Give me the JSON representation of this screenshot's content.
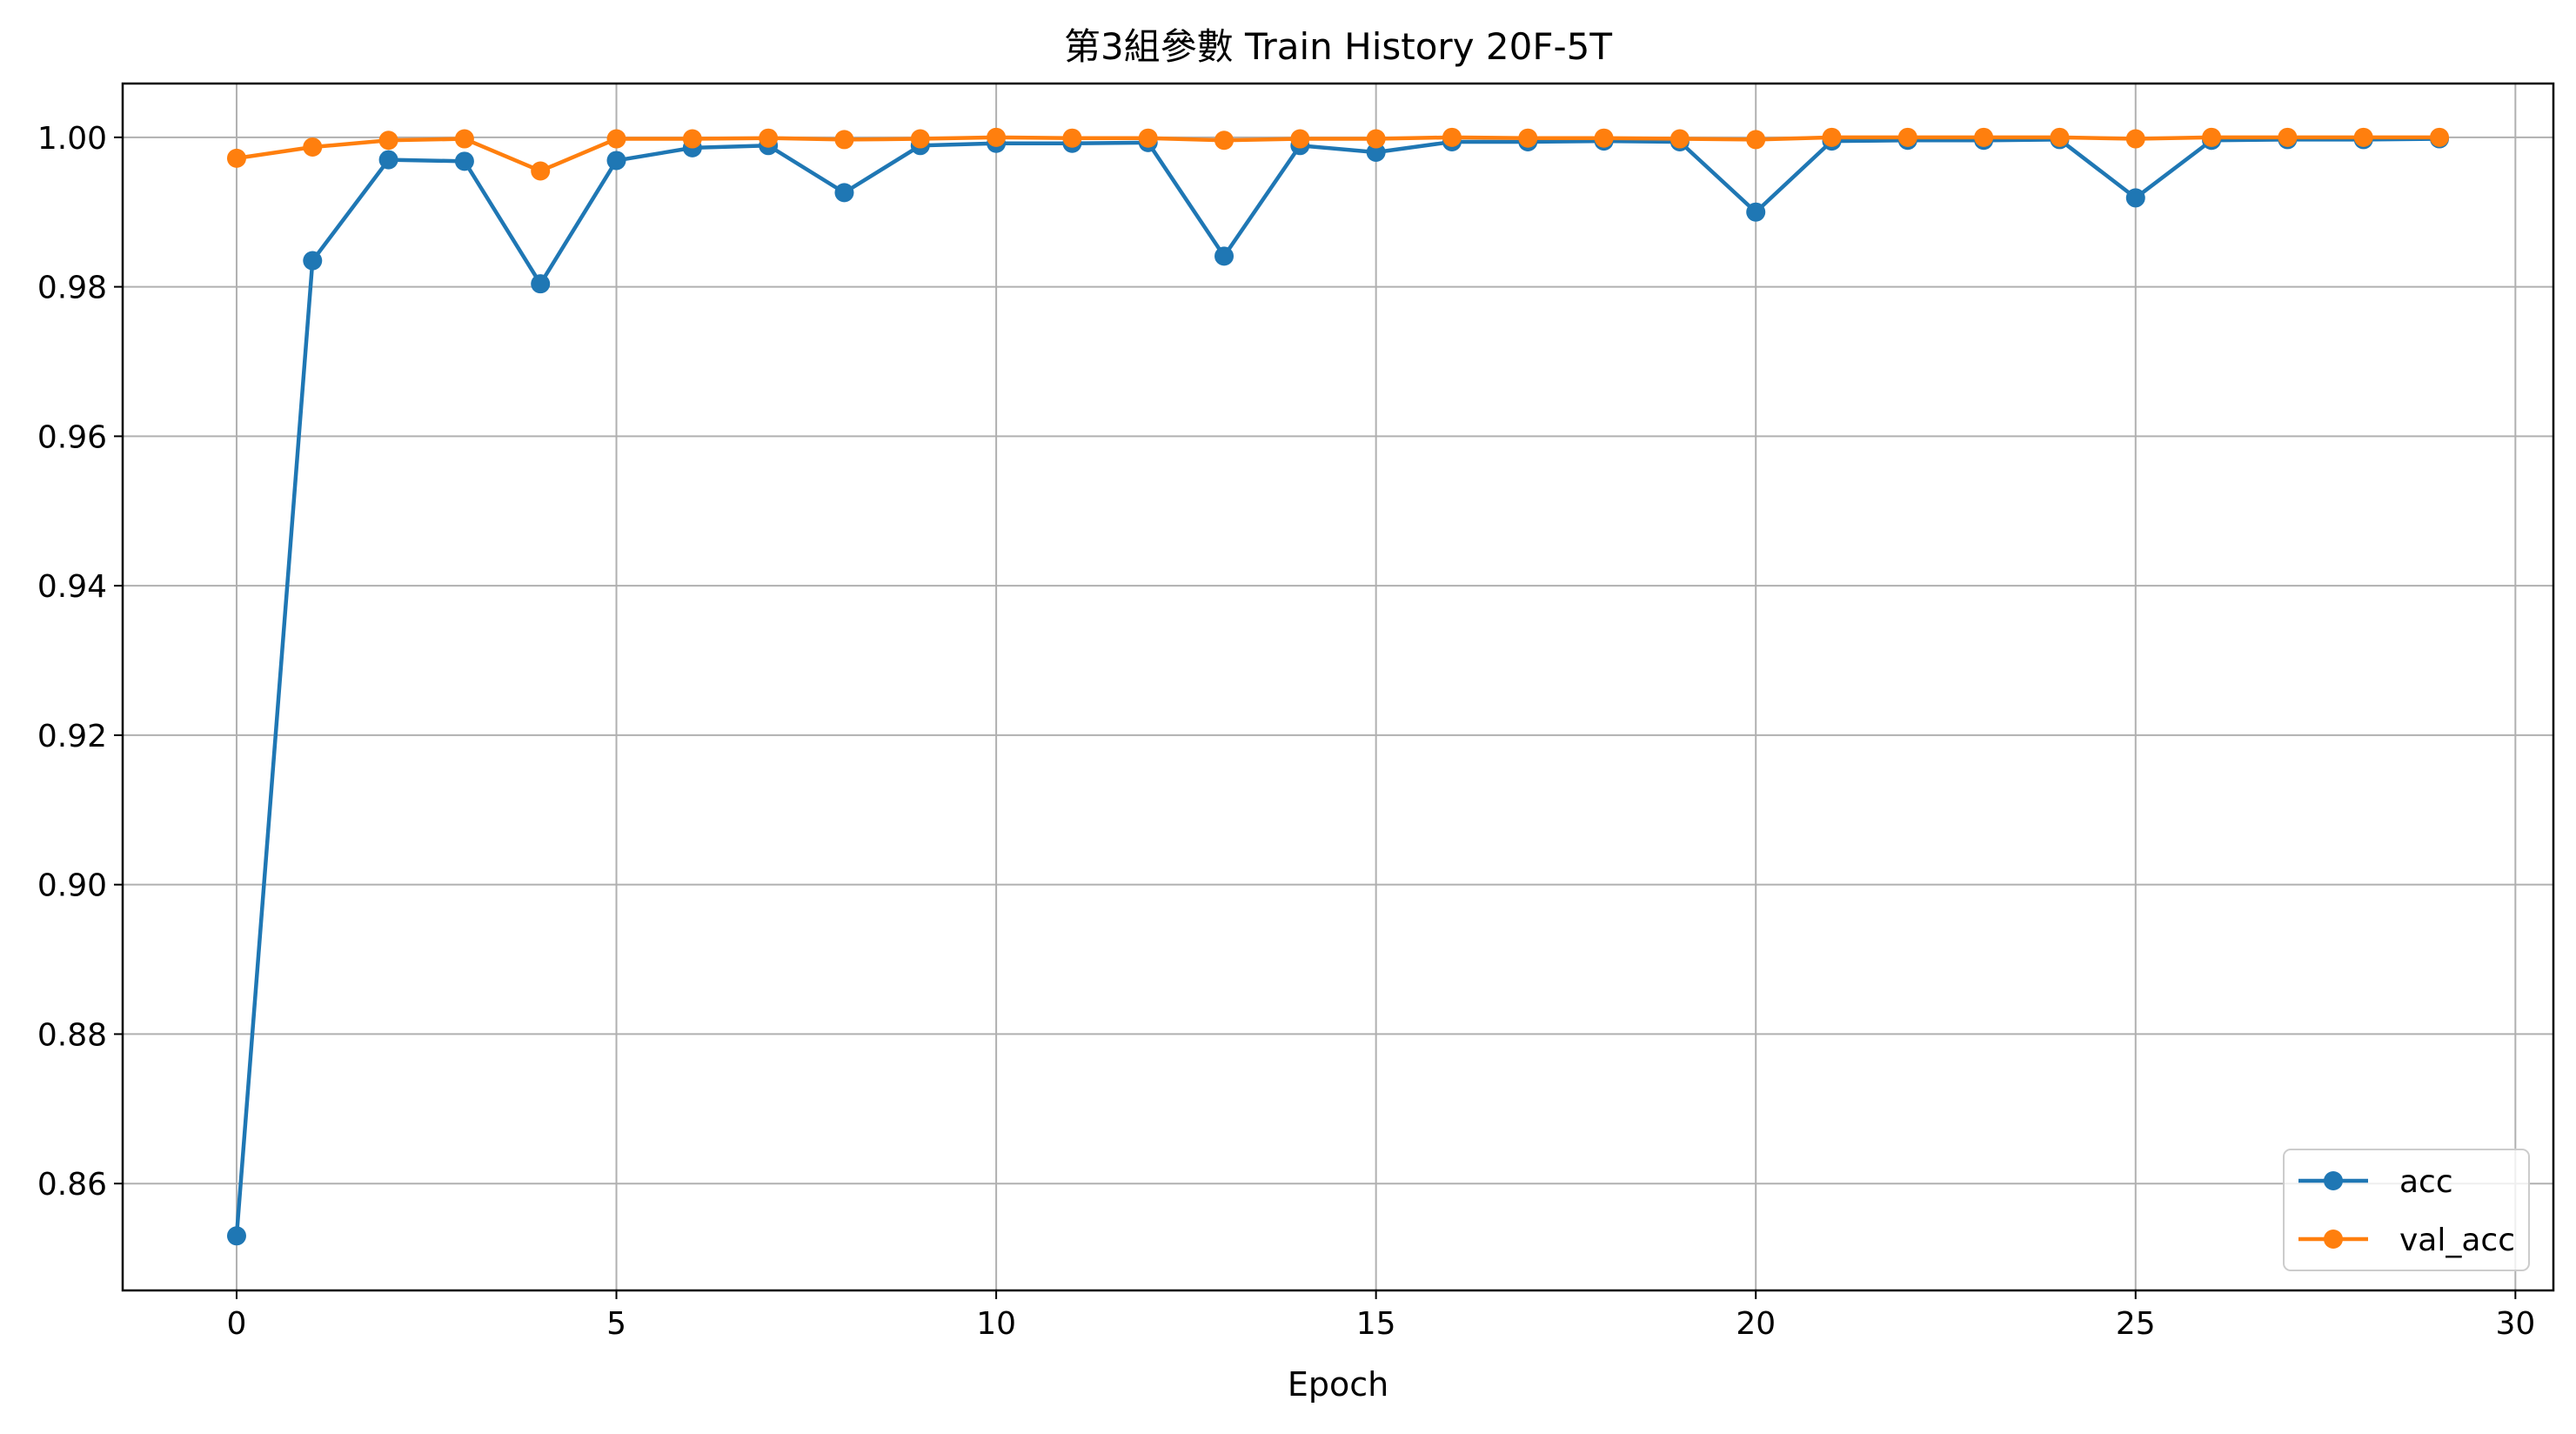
{
  "chart_data": {
    "type": "line",
    "title": "第3組參數 Train History 20F-5T",
    "xlabel": "Epoch",
    "ylabel": "",
    "xlim": [
      -1.5,
      30.5
    ],
    "ylim": [
      0.8457,
      1.0072
    ],
    "x_ticks": [
      0,
      5,
      10,
      15,
      20,
      25,
      30
    ],
    "y_ticks": [
      0.86,
      0.88,
      0.9,
      0.92,
      0.94,
      0.96,
      0.98,
      1.0
    ],
    "x_tick_labels": [
      "0",
      "5",
      "10",
      "15",
      "20",
      "25",
      "30"
    ],
    "y_tick_labels": [
      "0.86",
      "0.88",
      "0.90",
      "0.92",
      "0.94",
      "0.96",
      "0.98",
      "1.00"
    ],
    "grid": true,
    "legend_position": "bottom-right",
    "x": [
      0,
      1,
      2,
      3,
      4,
      5,
      6,
      7,
      8,
      9,
      10,
      11,
      12,
      13,
      14,
      15,
      16,
      17,
      18,
      19,
      20,
      21,
      22,
      23,
      24,
      25,
      26,
      27,
      28,
      29
    ],
    "series": [
      {
        "name": "acc",
        "color": "#1f77b4",
        "values": [
          0.853,
          0.9835,
          0.997,
          0.9968,
          0.9804,
          0.9969,
          0.9986,
          0.9989,
          0.9926,
          0.9989,
          0.9992,
          0.9992,
          0.9993,
          0.9841,
          0.9989,
          0.998,
          0.9994,
          0.9994,
          0.9995,
          0.9994,
          0.99,
          0.9995,
          0.9996,
          0.9996,
          0.9997,
          0.9919,
          0.9996,
          0.9997,
          0.9997,
          0.9998
        ]
      },
      {
        "name": "val_acc",
        "color": "#ff7f0e",
        "values": [
          0.9972,
          0.9987,
          0.9996,
          0.9998,
          0.9955,
          0.9998,
          0.9998,
          0.9999,
          0.9997,
          0.9998,
          1.0,
          0.9999,
          0.9999,
          0.9996,
          0.9998,
          0.9998,
          1.0,
          0.9999,
          0.9999,
          0.9998,
          0.9997,
          1.0,
          1.0,
          1.0,
          1.0,
          0.9998,
          1.0,
          1.0,
          1.0,
          1.0
        ]
      }
    ]
  }
}
